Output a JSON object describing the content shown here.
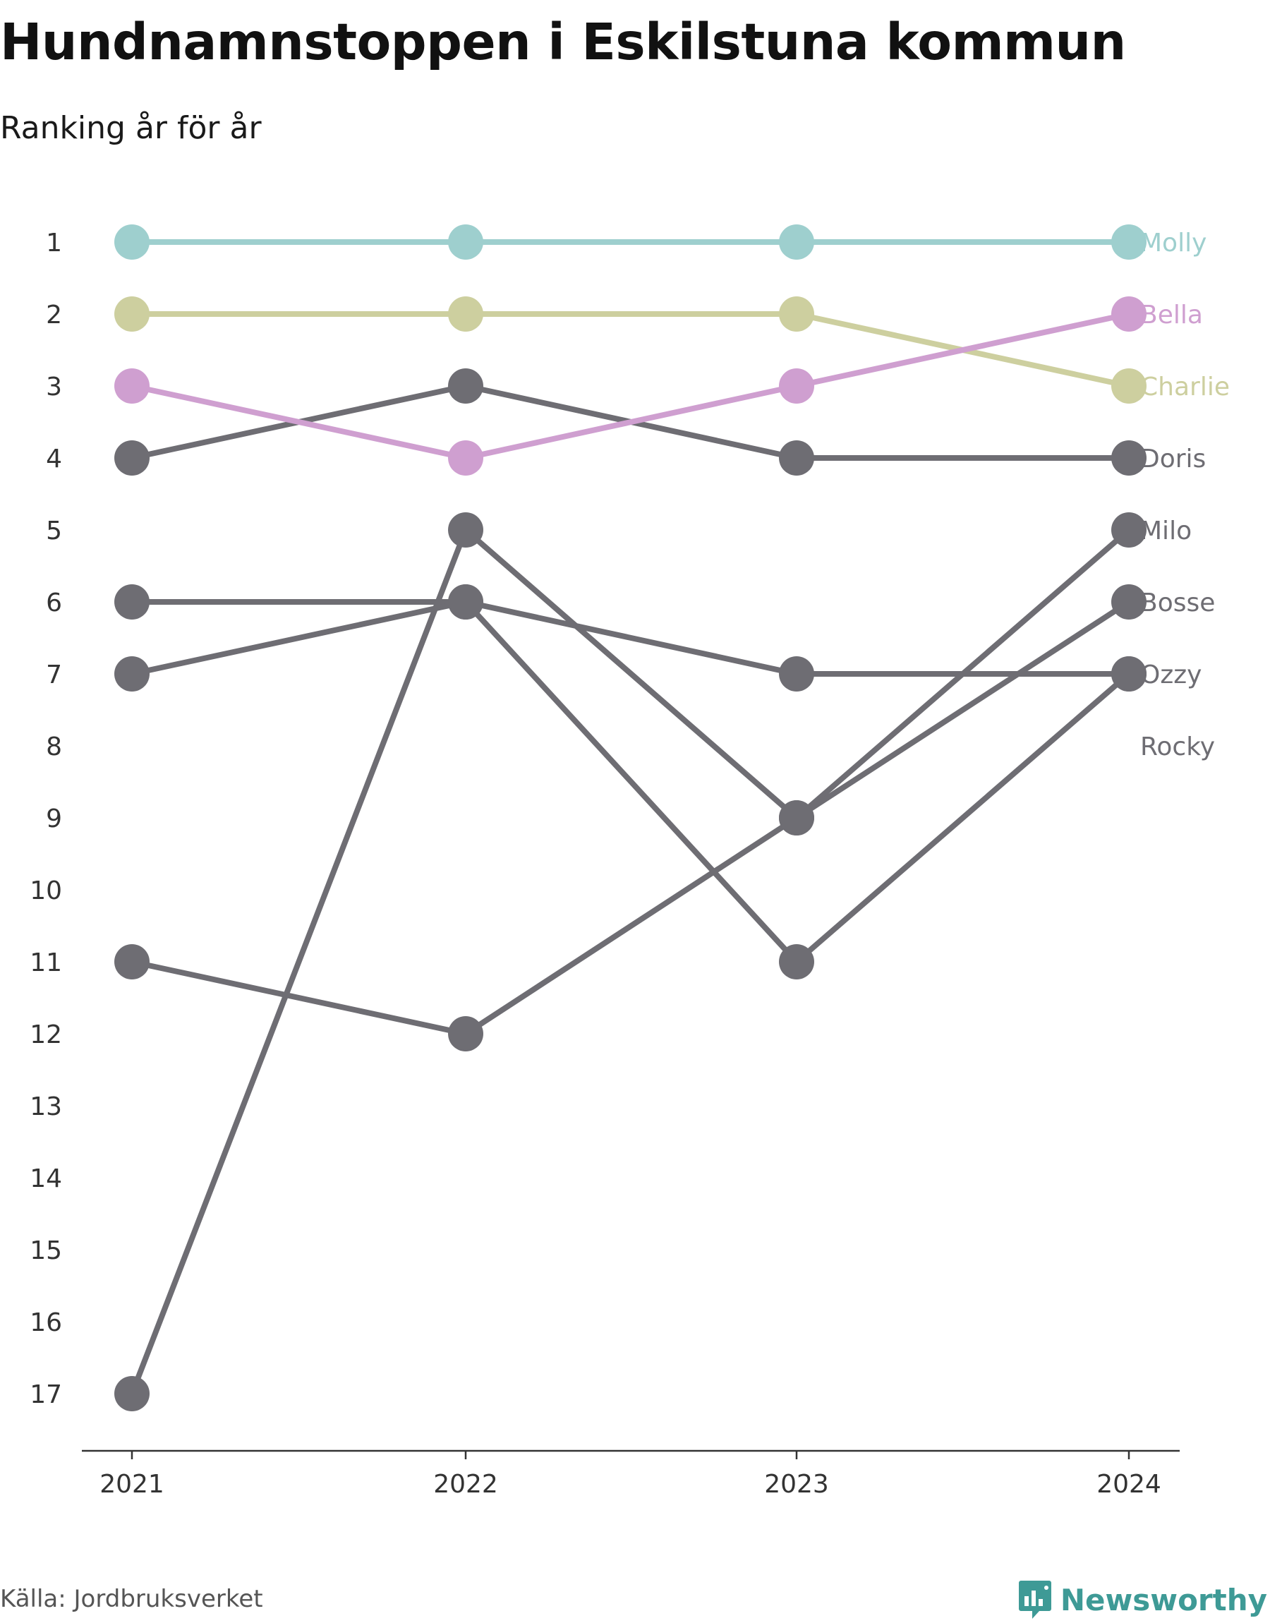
{
  "title": "Hundnamnstoppen i Eskilstuna kommun",
  "subtitle": "Ranking år för år",
  "source": "Källa: Jordbruksverket",
  "brand": {
    "name": "Newsworthy",
    "icon": "newsworthy-logo-icon",
    "color": "#3e9a96"
  },
  "chart_data": {
    "type": "line",
    "chart_subtype": "bump",
    "x": [
      "2021",
      "2022",
      "2023",
      "2024"
    ],
    "y_ticks": [
      1,
      2,
      3,
      4,
      5,
      6,
      7,
      8,
      9,
      10,
      11,
      12,
      13,
      14,
      15,
      16,
      17
    ],
    "ylim": [
      17,
      1
    ],
    "y_inverted": true,
    "grid": false,
    "legend": "end-labels-right",
    "series": [
      {
        "name": "Molly",
        "values": [
          1,
          1,
          1,
          1
        ],
        "color": "#9ecfce"
      },
      {
        "name": "Bella",
        "values": [
          3,
          4,
          3,
          2
        ],
        "color": "#cf9fd0"
      },
      {
        "name": "Charlie",
        "values": [
          2,
          2,
          2,
          3
        ],
        "color": "#cdcf9f"
      },
      {
        "name": "Doris",
        "values": [
          4,
          3,
          4,
          4
        ],
        "color": "#6e6d73"
      },
      {
        "name": "Milo",
        "values": [
          17,
          5,
          9,
          5
        ],
        "color": "#6e6d73"
      },
      {
        "name": "Bosse",
        "values": [
          11,
          12,
          9,
          6
        ],
        "color": "#6e6d73"
      },
      {
        "name": "Ozzy",
        "values": [
          6,
          6,
          7,
          7
        ],
        "color": "#6e6d73"
      },
      {
        "name": "Rocky",
        "values": [
          7,
          6,
          11,
          7
        ],
        "color": "#6e6d73"
      }
    ]
  }
}
